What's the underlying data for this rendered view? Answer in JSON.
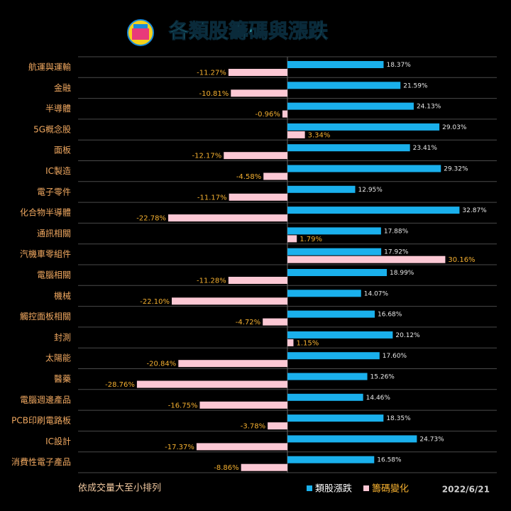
{
  "chart_data": {
    "type": "bar",
    "orientation": "horizontal",
    "title": "各類股籌碼與漲跌",
    "note": "依成交量大至小排列",
    "date": "2022/6/21",
    "categories": [
      "航運與運輸",
      "金融",
      "半導體",
      "5G概念股",
      "面板",
      "IC製造",
      "電子零件",
      "化合物半導體",
      "通訊相關",
      "汽機車零組件",
      "電腦相關",
      "機械",
      "觸控面板相關",
      "封測",
      "太陽能",
      "醫藥",
      "電腦週邊產品",
      "PCB印刷電路板",
      "IC設計",
      "消費性電子產品"
    ],
    "series": [
      {
        "name": "類股漲跌",
        "color": "#1ab0ec",
        "values": [
          18.37,
          21.59,
          24.13,
          29.03,
          23.41,
          29.32,
          12.95,
          32.87,
          17.88,
          17.92,
          18.99,
          14.07,
          16.68,
          20.12,
          17.6,
          15.26,
          14.46,
          18.35,
          24.73,
          16.58
        ],
        "value_labels": [
          "18.37%",
          "21.59%",
          "24.13%",
          "29.03%",
          "23.41%",
          "29.32%",
          "12.95%",
          "32.87%",
          "17.88%",
          "17.92%",
          "18.99%",
          "14.07%",
          "16.68%",
          "20.12%",
          "17.60%",
          "15.26%",
          "14.46%",
          "18.35%",
          "24.73%",
          "16.58%"
        ]
      },
      {
        "name": "籌碼變化",
        "color": "#fcc8d4",
        "values": [
          -11.27,
          -10.81,
          -0.96,
          3.34,
          -12.17,
          -4.58,
          -11.17,
          -22.78,
          1.79,
          30.16,
          -11.28,
          -22.1,
          -4.72,
          1.15,
          -20.84,
          -28.76,
          -16.75,
          -3.78,
          -17.37,
          -8.86
        ],
        "value_labels": [
          "-11.27%",
          "-10.81%",
          "-0.96%",
          "3.34%",
          "-12.17%",
          "-4.58%",
          "-11.17%",
          "-22.78%",
          "1.79%",
          "30.16%",
          "-11.28%",
          "-22.10%",
          "-4.72%",
          "1.15%",
          "-20.84%",
          "-28.76%",
          "-16.75%",
          "-3.78%",
          "-17.37%",
          "-8.86%"
        ]
      }
    ],
    "xlim": [
      -40,
      40
    ]
  }
}
